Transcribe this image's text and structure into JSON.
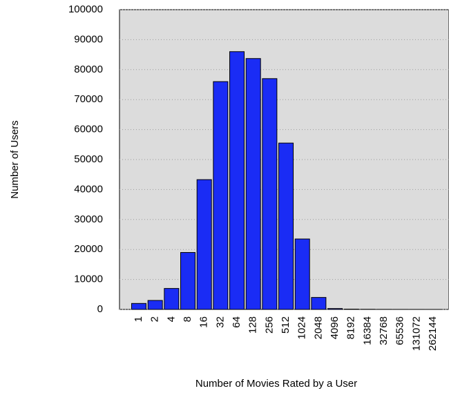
{
  "chart_data": {
    "type": "bar",
    "xlabel": "Number of Movies Rated by a User",
    "ylabel": "Number of Users",
    "categories": [
      "1",
      "2",
      "4",
      "8",
      "16",
      "32",
      "64",
      "128",
      "256",
      "512",
      "1024",
      "2048",
      "4096",
      "8192",
      "16384",
      "32768",
      "65536",
      "131072",
      "262144"
    ],
    "values": [
      2000,
      3000,
      7000,
      19000,
      43300,
      76000,
      86000,
      83700,
      77000,
      55500,
      23500,
      4000,
      300,
      100,
      50,
      20,
      10,
      5,
      2
    ],
    "color": "#1a2cf5",
    "ylim": [
      0,
      100000
    ],
    "yticks": [
      0,
      10000,
      20000,
      30000,
      40000,
      50000,
      60000,
      70000,
      80000,
      90000,
      100000
    ],
    "grid": true
  }
}
